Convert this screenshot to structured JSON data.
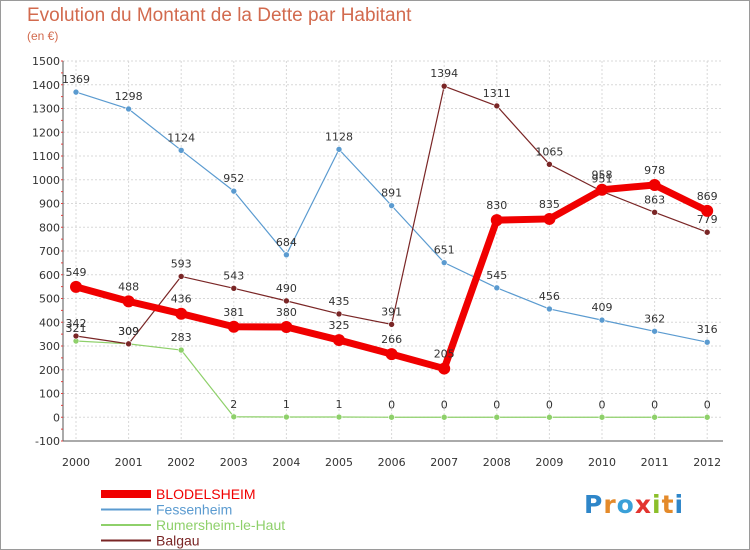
{
  "header": {
    "title": "Evolution du Montant de la Dette par Habitant",
    "unit": "(en €)"
  },
  "logo": {
    "letters": [
      "P",
      "r",
      "o",
      "x",
      "i",
      "t",
      "i"
    ],
    "colors": [
      "#2e86c9",
      "#e48a2a",
      "#3aa0d8",
      "#e3342f",
      "#8bbf2a",
      "#e48a2a",
      "#2e86c9"
    ]
  },
  "chart_data": {
    "type": "line",
    "x": [
      "2000",
      "2001",
      "2002",
      "2003",
      "2004",
      "2005",
      "2006",
      "2007",
      "2008",
      "2009",
      "2010",
      "2011",
      "2012"
    ],
    "ylim": [
      -100,
      1500
    ],
    "yticks": [
      -100,
      0,
      100,
      200,
      300,
      400,
      500,
      600,
      700,
      800,
      900,
      1000,
      1100,
      1200,
      1300,
      1400,
      1500
    ],
    "grid": true,
    "legend_position": "bottom-left",
    "series": [
      {
        "name": "Fessenheim",
        "color": "#5b9bd0",
        "values": [
          1369,
          1298,
          1124,
          952,
          684,
          1128,
          891,
          651,
          545,
          456,
          409,
          362,
          316
        ]
      },
      {
        "name": "Rumersheim-le-Haut",
        "color": "#8ed06a",
        "values": [
          321,
          309,
          283,
          2,
          1,
          1,
          0,
          0,
          0,
          0,
          0,
          0,
          0
        ]
      },
      {
        "name": "Balgau",
        "color": "#7a2626",
        "values": [
          342,
          309,
          593,
          543,
          490,
          435,
          391,
          1394,
          1311,
          1065,
          951,
          863,
          779
        ]
      },
      {
        "name": "BLODELSHEIM",
        "color": "#f00000",
        "values": [
          549,
          488,
          436,
          381,
          380,
          325,
          266,
          205,
          830,
          835,
          958,
          978,
          869
        ]
      }
    ],
    "legend_order": [
      "BLODELSHEIM",
      "Fessenheim",
      "Rumersheim-le-Haut",
      "Balgau"
    ]
  }
}
